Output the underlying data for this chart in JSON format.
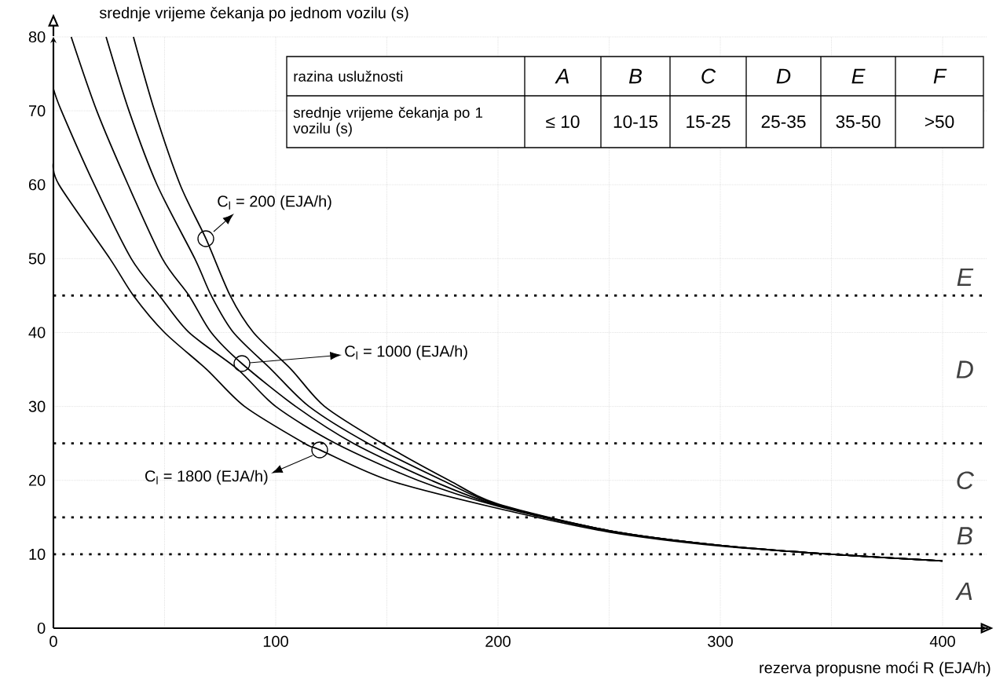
{
  "chart_data": {
    "type": "line",
    "xlabel": "rezerva propusne moći R (EJA/h)",
    "ylabel": "srednje vrijeme čekanja po jednom vozilu (s)",
    "xlim": [
      0,
      420
    ],
    "ylim": [
      0,
      80
    ],
    "xticks": [
      0,
      {
        "value": 50,
        "label": null
      },
      100,
      {
        "value": 150,
        "label": null
      },
      200,
      {
        "value": 250,
        "label": null
      },
      300,
      {
        "value": 350,
        "label": null
      },
      400
    ],
    "yticks": [
      0,
      10,
      20,
      30,
      40,
      50,
      60,
      70,
      80
    ],
    "grid": true,
    "marker": "none",
    "line_style": "solid",
    "series": [
      {
        "color": "#000000",
        "x": [
          36,
          45.5,
          57,
          68.6,
          79.5,
          90,
          107,
          122,
          148,
          178,
          200,
          250,
          300,
          350,
          400
        ],
        "values": [
          80,
          70,
          60,
          52.7,
          45,
          40,
          35,
          30,
          25,
          20,
          16.8,
          13.2,
          11.2,
          10,
          9.1
        ]
      },
      {
        "color": "#000000",
        "x": [
          23.7,
          34,
          46.6,
          63.6,
          71,
          81,
          98,
          115,
          141.6,
          175,
          200,
          250,
          300,
          350,
          400
        ],
        "values": [
          80,
          70,
          60,
          50,
          45,
          40,
          35,
          30,
          25,
          20,
          16.7,
          13.2,
          11.2,
          10,
          9.1
        ]
      },
      {
        "color": "#000000",
        "x": [
          8,
          19.5,
          33.6,
          49,
          61,
          71,
          84.8,
          109,
          135,
          170,
          200,
          250,
          300,
          350,
          400
        ],
        "values": [
          80,
          70,
          60,
          50,
          45,
          40,
          35.8,
          30,
          25,
          20,
          16.6,
          13.2,
          11.2,
          10,
          9.1
        ]
      },
      {
        "color": "#000000",
        "x": [
          0,
          3.6,
          18.4,
          35,
          47.7,
          61,
          83,
          100,
          127,
          164,
          200,
          250,
          300,
          350,
          400
        ],
        "values": [
          73,
          70,
          60,
          50,
          45,
          40,
          35,
          30,
          25,
          20,
          16.5,
          13.1,
          11.2,
          10,
          9.1
        ]
      },
      {
        "color": "#000000",
        "x": [
          0,
          2.5,
          25.4,
          36,
          50,
          69,
          86,
          113,
          120,
          151,
          200,
          250,
          300,
          350,
          400
        ],
        "values": [
          63,
          60,
          50,
          45,
          40,
          35,
          30,
          25,
          24.1,
          20,
          16.2,
          13,
          11.1,
          10,
          9.1
        ]
      }
    ],
    "ref_lines": [
      {
        "axis": "y",
        "value": 10,
        "line_style": "dotted"
      },
      {
        "axis": "y",
        "value": 15,
        "line_style": "dotted"
      },
      {
        "axis": "y",
        "value": 25,
        "line_style": "dotted"
      },
      {
        "axis": "y",
        "value": 45,
        "line_style": "dotted"
      }
    ],
    "annotations": [
      "C$_{l}$ = 200   (EJA/h)",
      "C$_{l}$ = 1000  (EJA/h)",
      "C$_{l}$ = 1800   (EJA/h)",
      "razina uslužnosti",
      "A",
      "B",
      "C",
      "D",
      "E",
      "F",
      "srednje vrijeme čekanja po 1 vozilu (s)",
      "≤ 10",
      "10-15",
      "15-25",
      "25-35",
      "35-50",
      ">50",
      "A",
      "B",
      "C",
      "D",
      "E"
    ]
  }
}
